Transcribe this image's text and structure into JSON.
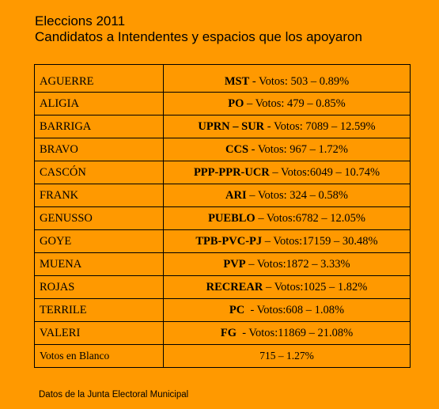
{
  "title": {
    "line1": "Eleccions 2011",
    "line2": "Candidatos a Intendentes y espacios que los apoyaron"
  },
  "rows": [
    {
      "name": "AGUERRE",
      "party": "MST",
      "detail": " - Votos: 503 – 0.89%"
    },
    {
      "name": "ALIGIA",
      "party": "PO",
      "detail": " – Votos: 479 – 0.85%"
    },
    {
      "name": "BARRIGA",
      "party": "UPRN – SUR",
      "detail": " - Votos: 7089 – 12.59%"
    },
    {
      "name": "BRAVO",
      "party": "CCS",
      "detail": " - Votos: 967 – 1.72%"
    },
    {
      "name": "CASCÓN",
      "party": "PPP-PPR-UCR",
      "detail": " – Votos:6049 – 10.74%"
    },
    {
      "name": "FRANK",
      "party": "ARI",
      "detail": " – Votos: 324 – 0.58%"
    },
    {
      "name": "GENUSSO",
      "party": "PUEBLO",
      "detail": " – Votos:6782 – 12.05%"
    },
    {
      "name": "GOYE",
      "party": "TPB-PVC-PJ",
      "detail": " – Votos:17159 – 30.48%"
    },
    {
      "name": "MUENA",
      "party": "PVP",
      "detail": " – Votos:1872 – 3.33%"
    },
    {
      "name": "ROJAS",
      "party": "RECREAR",
      "detail": " – Votos:1025 – 1.82%"
    },
    {
      "name": "TERRILE",
      "party": "PC",
      "detail": "  - Votos:608 – 1.08%"
    },
    {
      "name": "VALERI",
      "party": "FG",
      "detail": "  - Votos:11869 – 21.08%"
    },
    {
      "name": "Votos en Blanco",
      "party": "",
      "detail": "715 – 1.27%"
    }
  ],
  "footer": "Datos de la Junta Electoral Municipal"
}
